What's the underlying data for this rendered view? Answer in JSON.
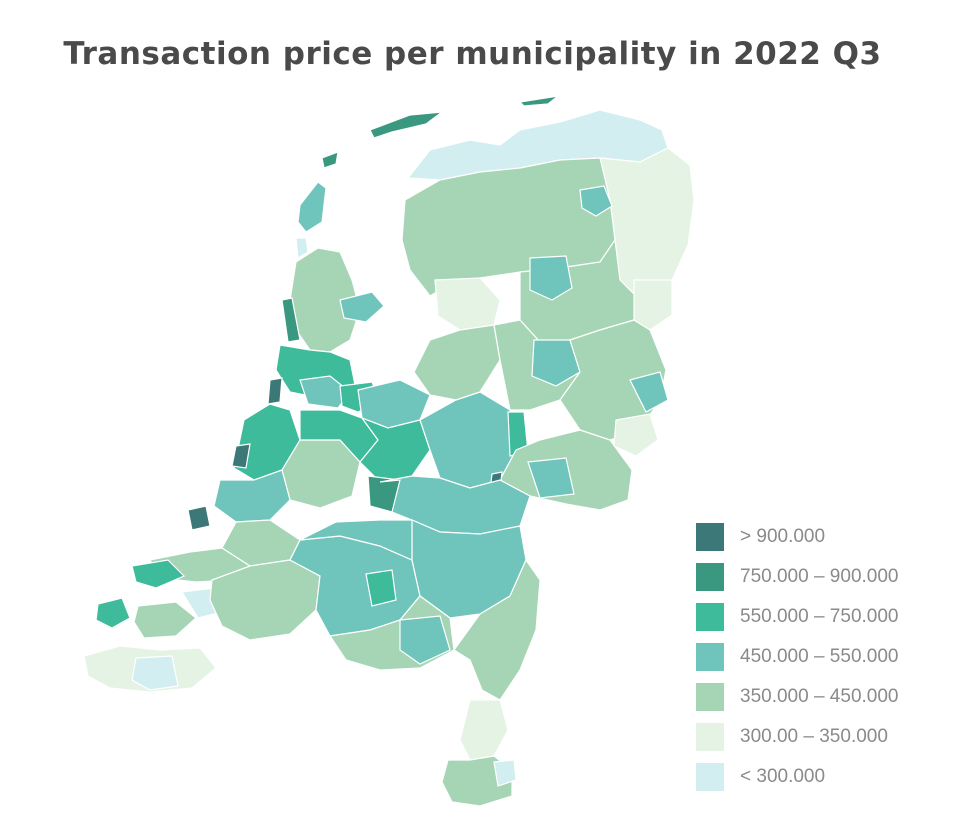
{
  "title": "Transaction price per municipality in 2022 Q3",
  "legend": [
    {
      "label": "> 900.000",
      "color": "#3c7878"
    },
    {
      "label": "750.000 – 900.000",
      "color": "#3a9880"
    },
    {
      "label": "550.000 – 750.000",
      "color": "#3dbb9b"
    },
    {
      "label": "450.000 – 550.000",
      "color": "#6fc4bc"
    },
    {
      "label": "350.000 – 450.000",
      "color": "#a6d5b6"
    },
    {
      "label": "300.00 – 350.000",
      "color": "#e4f3e4"
    },
    {
      "label": "< 300.000",
      "color": "#d2eef0"
    }
  ],
  "colors": {
    "map_border": "#ffffff",
    "title": "#4a4a4a",
    "legend_text": "#8a8a8a"
  }
}
